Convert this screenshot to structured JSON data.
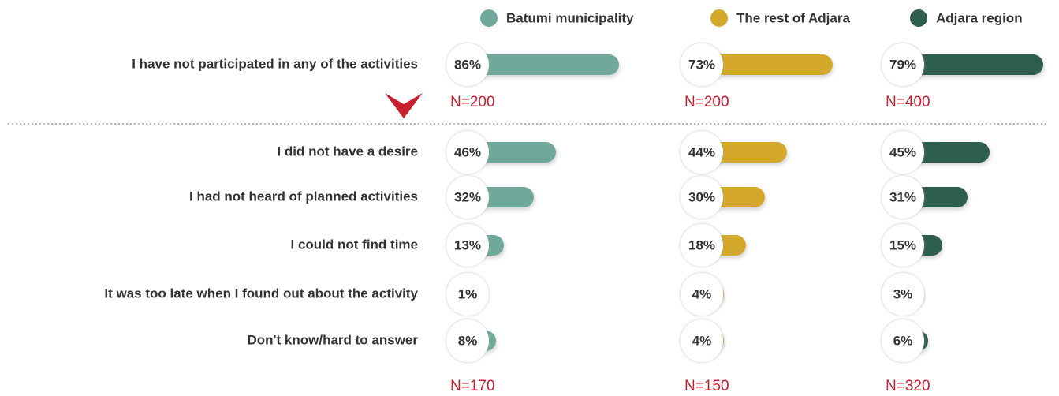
{
  "chart_data": [
    {
      "type": "bar",
      "categories": [
        "I have not participated in any of the activities"
      ],
      "xlim": [
        0,
        100
      ],
      "series": [
        {
          "name": "Batumi municipality",
          "color": "#6fa99b",
          "values": [
            86
          ],
          "value_labels": [
            "86%"
          ],
          "sample": "N=200"
        },
        {
          "name": "The rest of Adjara",
          "color": "#d4a82a",
          "values": [
            73
          ],
          "value_labels": [
            "73%"
          ],
          "sample": "N=200"
        },
        {
          "name": "Adjara region",
          "color": "#2e5e4e",
          "values": [
            79
          ],
          "value_labels": [
            "79%"
          ],
          "sample": "N=400"
        }
      ]
    },
    {
      "type": "bar",
      "categories": [
        "I did not have a desire",
        "I had not heard of planned activities",
        "I could not find time",
        "It was too late when I found out about the activity",
        "Don't know/hard to answer"
      ],
      "xlim": [
        0,
        100
      ],
      "series": [
        {
          "name": "Batumi municipality",
          "color": "#6fa99b",
          "values": [
            46,
            32,
            13,
            1,
            8
          ],
          "value_labels": [
            "46%",
            "32%",
            "13%",
            "1%",
            "8%"
          ],
          "sample": "N=170"
        },
        {
          "name": "The rest of Adjara",
          "color": "#d4a82a",
          "values": [
            44,
            30,
            18,
            4,
            4
          ],
          "value_labels": [
            "44%",
            "30%",
            "18%",
            "4%",
            "4%"
          ],
          "sample": "N=150"
        },
        {
          "name": "Adjara region",
          "color": "#2e5e4e",
          "values": [
            45,
            31,
            15,
            3,
            6
          ],
          "value_labels": [
            "45%",
            "31%",
            "15%",
            "3%",
            "6%"
          ],
          "sample": "N=320"
        }
      ]
    }
  ]
}
